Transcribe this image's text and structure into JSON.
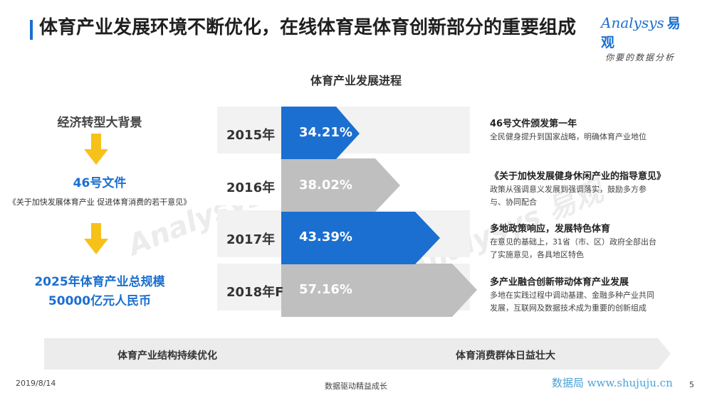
{
  "header": {
    "title": "体育产业发展环境不断优化，在线体育是体育创新部分的重要组成",
    "logo_main": "Analysys",
    "logo_cn": "易观",
    "logo_sub": "你要的数据分析"
  },
  "diagram_title": "体育产业发展进程",
  "left_column": {
    "background": "经济转型大背景",
    "document": "46号文件",
    "document_full": "《关于加快发展体育产业 促进体育消费的若干意见》",
    "goal_line1": "2025年体育产业总规模",
    "goal_line2": "50000亿元人民币"
  },
  "rows": [
    {
      "year": "2015年",
      "value_text": "34.21%",
      "value": 34.21,
      "color": "#1a6fd0"
    },
    {
      "year": "2016年",
      "value_text": "38.02%",
      "value": 38.02,
      "color": "#bfbfbf"
    },
    {
      "year": "2017年",
      "value_text": "43.39%",
      "value": 43.39,
      "color": "#1a6fd0"
    },
    {
      "year": "2018年F",
      "value_text": "57.16%",
      "value": 57.16,
      "color": "#bfbfbf"
    }
  ],
  "notes": [
    {
      "title": "46号文件颁发第一年",
      "body": "全民健身提升到国家战略，明确体育产业地位"
    },
    {
      "title": "《关于加快发展健身休闲产业的指导意见》",
      "body": "政策从强调意义发展到强调落实，鼓励多方参与、协同配合"
    },
    {
      "title": "多地政策响应，发展特色体育",
      "body": "在意见的基础上，31省（市、区）政府全部出台了实施意见，各具地区特色"
    },
    {
      "title": "多产业融合创新带动体育产业发展",
      "body": "多地在实践过程中调动基建、金融多种产业共同发展，互联网及数据技术成为重要的创新组成"
    }
  ],
  "bottom_band": {
    "left": "体育产业结构持续优化",
    "right": "体育消费群体日益壮大"
  },
  "footer": {
    "date": "2019/8/14",
    "center": "数据驱动精益成长",
    "watermark": "数据局 www.shujuju.cn",
    "page": "5"
  },
  "colors": {
    "accent": "#1a6fd0",
    "gray": "#bfbfbf",
    "band": "#ececec"
  }
}
